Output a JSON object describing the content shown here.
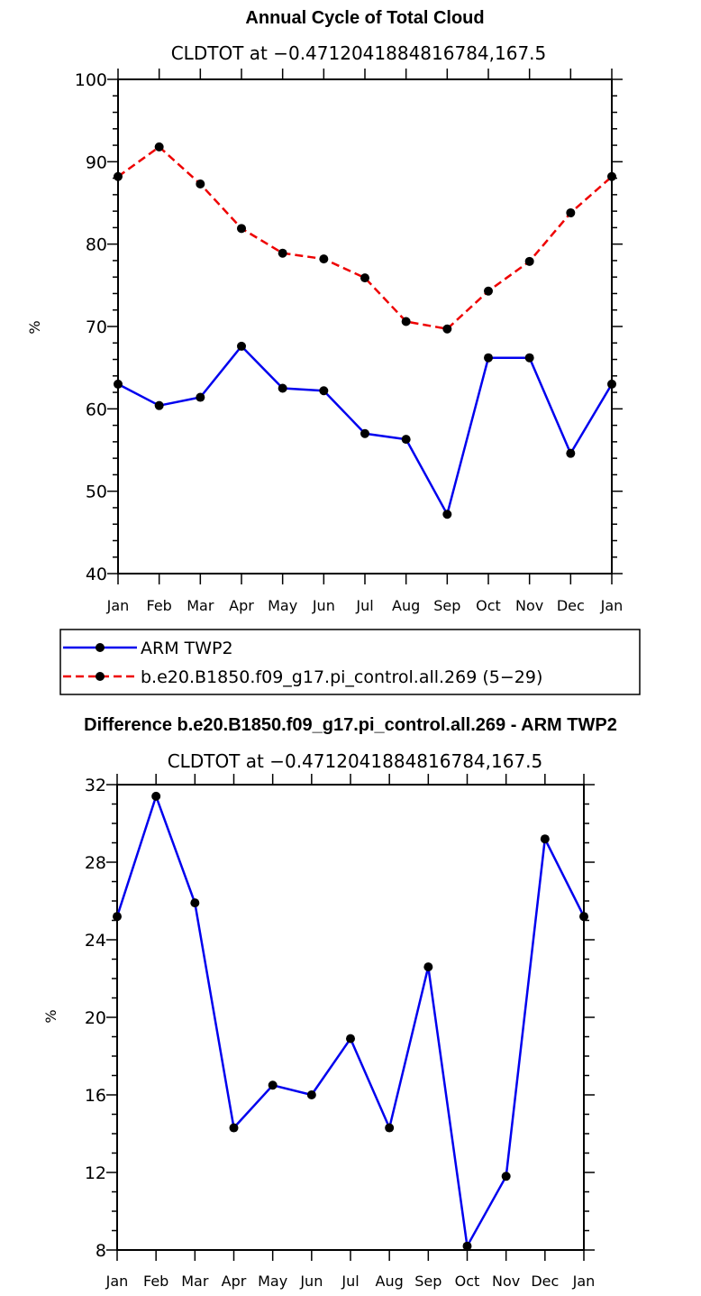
{
  "chart_data": [
    {
      "type": "line",
      "title": "Annual Cycle of Total Cloud",
      "subtitle": "CLDTOT at −0.4712041884816784,167.5",
      "xlabel": "",
      "ylabel": "%",
      "ylim": [
        40,
        100
      ],
      "yticks": [
        "40",
        "50",
        "60",
        "70",
        "80",
        "90",
        "100"
      ],
      "categories": [
        "Jan",
        "Feb",
        "Mar",
        "Apr",
        "May",
        "Jun",
        "Jul",
        "Aug",
        "Sep",
        "Oct",
        "Nov",
        "Dec",
        "Jan"
      ],
      "series": [
        {
          "name": "ARM TWP2",
          "color": "#0000ee",
          "dash": "solid",
          "values": [
            63.0,
            60.4,
            61.4,
            67.6,
            62.5,
            62.2,
            57.0,
            56.3,
            47.2,
            66.2,
            66.2,
            54.6,
            63.0
          ]
        },
        {
          "name": "b.e20.B1850.f09_g17.pi_control.all.269 (5−29)",
          "color": "#ee0000",
          "dash": "dashed",
          "values": [
            88.2,
            91.8,
            87.3,
            81.9,
            78.9,
            78.2,
            75.9,
            70.6,
            69.7,
            74.3,
            77.9,
            83.8,
            88.2
          ]
        }
      ],
      "legend": "below"
    },
    {
      "type": "line",
      "title": "Difference b.e20.B1850.f09_g17.pi_control.all.269 - ARM TWP2",
      "subtitle": "CLDTOT at −0.4712041884816784,167.5",
      "xlabel": "",
      "ylabel": "%",
      "ylim": [
        8,
        32
      ],
      "yticks": [
        "8",
        "12",
        "16",
        "20",
        "24",
        "28",
        "32"
      ],
      "categories": [
        "Jan",
        "Feb",
        "Mar",
        "Apr",
        "May",
        "Jun",
        "Jul",
        "Aug",
        "Sep",
        "Oct",
        "Nov",
        "Dec",
        "Jan"
      ],
      "series": [
        {
          "name": "Difference",
          "color": "#0000ee",
          "dash": "solid",
          "values": [
            25.2,
            31.4,
            25.9,
            14.3,
            16.5,
            16.0,
            18.9,
            14.3,
            22.6,
            8.2,
            11.8,
            29.2,
            25.2
          ]
        }
      ],
      "legend": "none"
    }
  ]
}
